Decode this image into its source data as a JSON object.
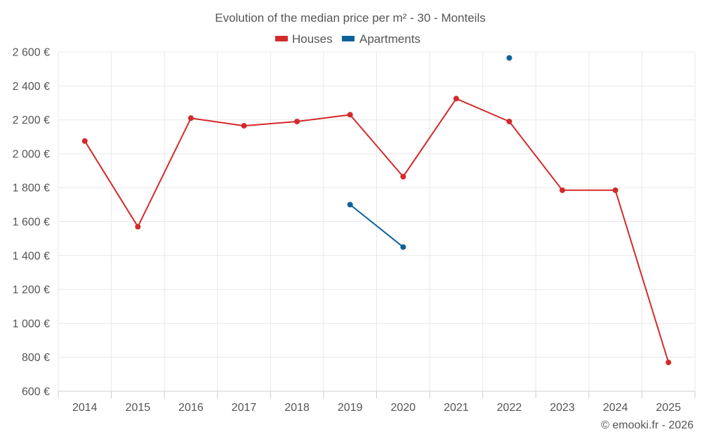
{
  "chart_data": {
    "type": "line",
    "title": "Evolution of the median price per m² - 30 - Monteils",
    "categories": [
      "2014",
      "2015",
      "2016",
      "2017",
      "2018",
      "2019",
      "2020",
      "2021",
      "2022",
      "2023",
      "2024",
      "2025"
    ],
    "series": [
      {
        "name": "Houses",
        "color": "#d42a2a",
        "values": [
          2075,
          1570,
          2210,
          2165,
          2190,
          2230,
          1865,
          2325,
          2190,
          1785,
          1785,
          770
        ]
      },
      {
        "name": "Apartments",
        "color": "#0d6399",
        "values": [
          null,
          null,
          null,
          null,
          null,
          1700,
          1450,
          null,
          2565,
          null,
          null,
          null
        ]
      }
    ],
    "yticks": [
      600,
      800,
      1000,
      1200,
      1400,
      1600,
      1800,
      2000,
      2200,
      2400,
      2600
    ],
    "ytick_labels": [
      "600 €",
      "800 €",
      "1 000 €",
      "1 200 €",
      "1 400 €",
      "1 600 €",
      "1 800 €",
      "2 000 €",
      "2 200 €",
      "2 400 €",
      "2 600 €"
    ],
    "ylim": [
      600,
      2600
    ],
    "grid": true,
    "legend_position": "top-center",
    "credit": "© emooki.fr - 2026"
  }
}
